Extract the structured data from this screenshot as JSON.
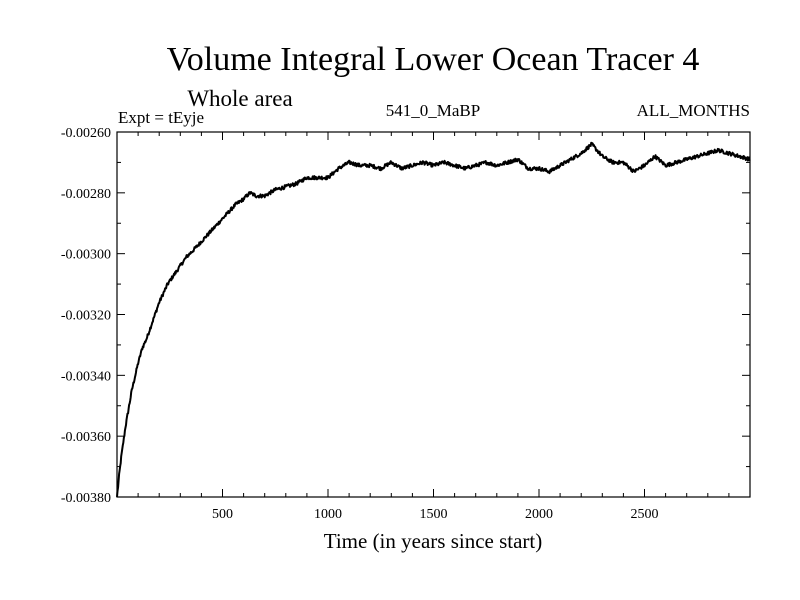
{
  "chart_data": {
    "type": "line",
    "title": "Volume Integral Lower Ocean Tracer 4",
    "subtitle": "Whole area",
    "experiment_label": "Expt = tEyje",
    "period_label": "541_0_MaBP",
    "months_label": "ALL_MONTHS",
    "xlabel": "Time (in years since start)",
    "ylabel": "",
    "xlim": [
      0,
      3000
    ],
    "ylim": [
      -0.0038,
      -0.0026
    ],
    "x_ticks": [
      500,
      1000,
      1500,
      2000,
      2500
    ],
    "x_tick_labels": [
      "500",
      "1000",
      "1500",
      "2000",
      "2500"
    ],
    "y_ticks": [
      -0.0038,
      -0.0036,
      -0.0034,
      -0.0032,
      -0.003,
      -0.0028,
      -0.0026
    ],
    "y_tick_labels": [
      "-0.00380",
      "-0.00360",
      "-0.00340",
      "-0.00320",
      "-0.00300",
      "-0.00280",
      "-0.00260"
    ],
    "grid": false,
    "series": [
      {
        "name": "Lower Ocean Tracer 4",
        "color": "#000000",
        "x": [
          0,
          10,
          20,
          30,
          40,
          50,
          60,
          70,
          80,
          100,
          120,
          140,
          160,
          180,
          200,
          220,
          240,
          260,
          280,
          300,
          330,
          360,
          400,
          440,
          480,
          520,
          560,
          600,
          630,
          660,
          700,
          750,
          800,
          850,
          900,
          950,
          1000,
          1050,
          1100,
          1150,
          1200,
          1250,
          1300,
          1350,
          1400,
          1450,
          1500,
          1550,
          1600,
          1650,
          1700,
          1750,
          1800,
          1850,
          1900,
          1950,
          2000,
          2050,
          2100,
          2150,
          2200,
          2250,
          2300,
          2350,
          2400,
          2450,
          2500,
          2550,
          2600,
          2650,
          2700,
          2750,
          2800,
          2850,
          2900,
          2950,
          3000
        ],
        "values": [
          -0.0038,
          -0.00373,
          -0.00367,
          -0.00362,
          -0.00357,
          -0.00353,
          -0.00349,
          -0.00345,
          -0.00342,
          -0.00336,
          -0.00331,
          -0.00328,
          -0.00324,
          -0.0032,
          -0.00316,
          -0.00313,
          -0.0031,
          -0.00308,
          -0.00306,
          -0.00304,
          -0.00301,
          -0.00299,
          -0.00296,
          -0.00293,
          -0.0029,
          -0.00287,
          -0.00284,
          -0.00282,
          -0.0028,
          -0.00281,
          -0.00281,
          -0.00279,
          -0.00278,
          -0.00277,
          -0.00275,
          -0.00275,
          -0.00275,
          -0.00272,
          -0.0027,
          -0.00271,
          -0.00271,
          -0.00272,
          -0.0027,
          -0.00272,
          -0.00271,
          -0.0027,
          -0.00271,
          -0.0027,
          -0.00271,
          -0.00272,
          -0.00271,
          -0.0027,
          -0.00271,
          -0.0027,
          -0.00269,
          -0.00272,
          -0.00272,
          -0.00273,
          -0.00271,
          -0.00269,
          -0.00267,
          -0.00264,
          -0.00268,
          -0.0027,
          -0.0027,
          -0.00273,
          -0.00271,
          -0.00268,
          -0.00271,
          -0.0027,
          -0.00269,
          -0.00268,
          -0.00267,
          -0.00266,
          -0.00267,
          -0.00268,
          -0.00269
        ]
      }
    ]
  }
}
